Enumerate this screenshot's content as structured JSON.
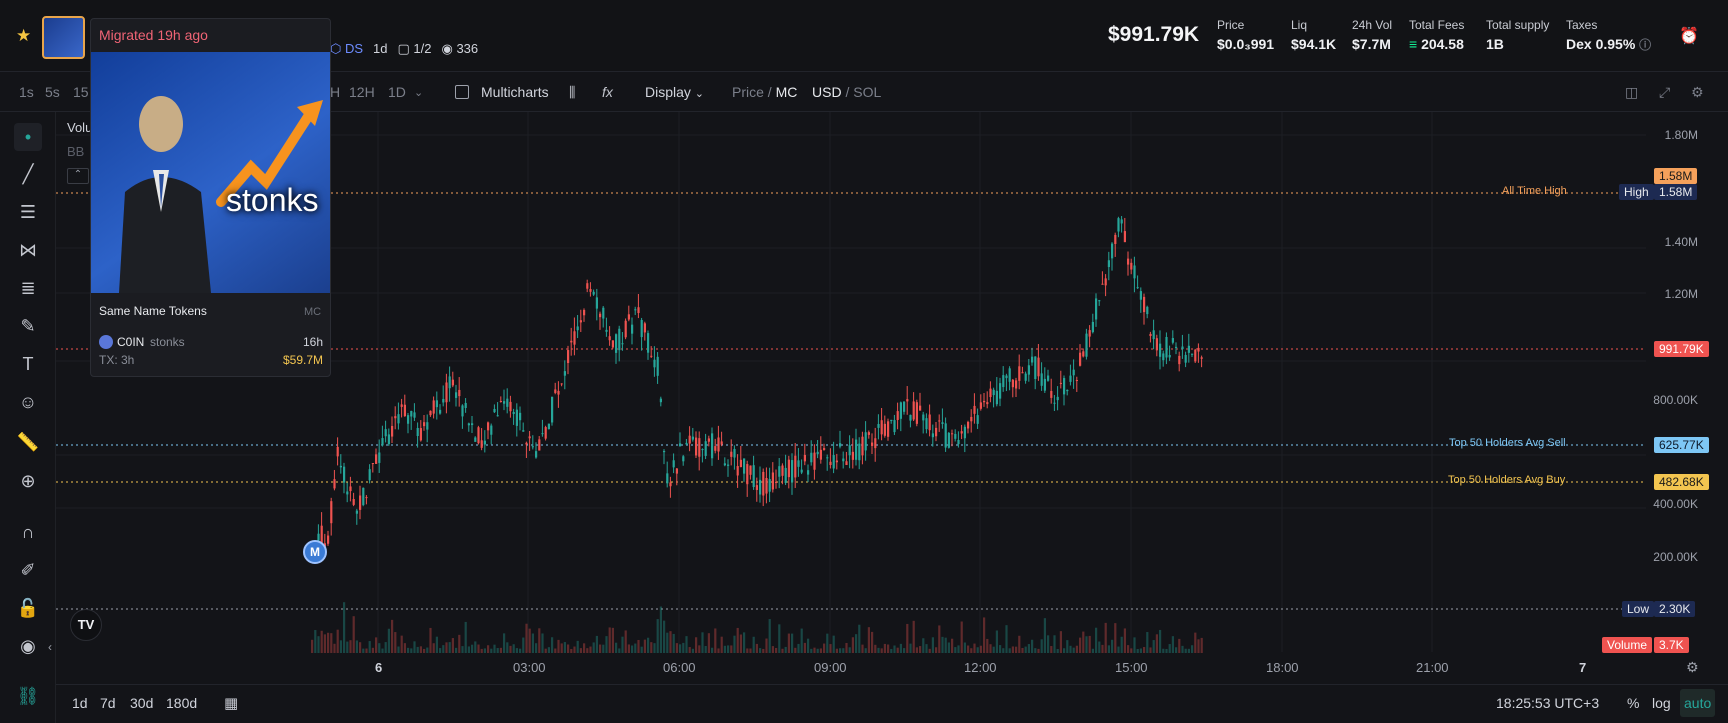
{
  "header": {
    "market_cap": "$991.79K",
    "token_info": {
      "ds": "DS",
      "age": "1d",
      "holders_ratio": "1/2",
      "views": "336"
    },
    "stats": [
      {
        "label": "Price",
        "value": "$0.0₃991"
      },
      {
        "label": "Liq",
        "value": "$94.1K"
      },
      {
        "label": "24h Vol",
        "value": "$7.7M"
      },
      {
        "label": "Total Fees",
        "value": "204.58"
      },
      {
        "label": "Total supply",
        "value": "1B"
      },
      {
        "label": "Taxes",
        "value": "Dex 0.95%"
      }
    ]
  },
  "toolbar": {
    "intervals": [
      "1s",
      "5s",
      "15",
      "H",
      "12H",
      "1D"
    ],
    "multicharts": "Multicharts",
    "display": "Display",
    "price": "Price",
    "mc": "MC",
    "usd": "USD",
    "sol": "SOL"
  },
  "legend": {
    "volume": "Volu",
    "bb": "BB"
  },
  "popup": {
    "migrated": "Migrated 19h ago",
    "meme_text": "stonks",
    "same_name": "Same Name Tokens",
    "mc_label": "MC",
    "token_symbol": "C0IN",
    "token_name": "stonks",
    "token_age": "16h",
    "tx": "TX: 3h",
    "token_mc": "$59.7M"
  },
  "price_axis": [
    "1.80M",
    "1.40M",
    "1.20M",
    "800.00K",
    "400.00K",
    "200.00K"
  ],
  "tags": {
    "ath_value": "1.58M",
    "high_label": "High",
    "high_value": "1.58M",
    "current": "991.79K",
    "sell_value": "625.77K",
    "buy_value": "482.68K",
    "low_label": "Low",
    "low_value": "2.30K",
    "volume_label": "Volume",
    "volume_value": "3.7K"
  },
  "lines": {
    "ath": "All Time High",
    "sell": "Top 50 Holders Avg Sell",
    "buy": "Top 50 Holders Avg Buy"
  },
  "time_axis": [
    "6",
    "03:00",
    "06:00",
    "09:00",
    "12:00",
    "15:00",
    "18:00",
    "21:00",
    "7"
  ],
  "marker": "M",
  "bottombar": {
    "ranges": [
      "1d",
      "7d",
      "30d",
      "180d"
    ],
    "clock": "18:25:53 UTC+3",
    "pct": "%",
    "log": "log",
    "auto": "auto"
  },
  "colors": {
    "up": "#26a69a",
    "down": "#ef5350",
    "ath": "#f5a15b",
    "sell": "#7ec7f5",
    "buy": "#f3c550"
  }
}
